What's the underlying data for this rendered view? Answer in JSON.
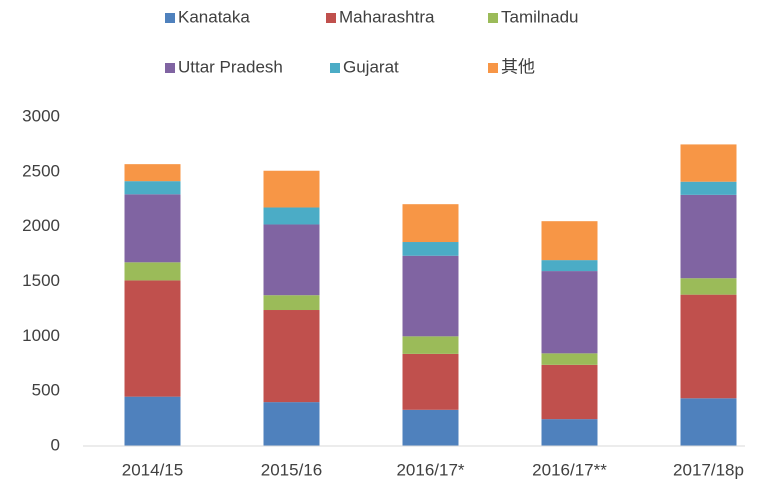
{
  "chart_data": {
    "type": "stacked_bar",
    "categories": [
      "2014/15",
      "2015/16",
      "2016/17*",
      "2016/17**",
      "2017/18p"
    ],
    "series": [
      {
        "name": "Kanataka",
        "color": "#4f81bd",
        "values": [
          450,
          400,
          330,
          245,
          435
        ]
      },
      {
        "name": "Maharashtra",
        "color": "#c0504d",
        "values": [
          1060,
          840,
          510,
          495,
          945
        ]
      },
      {
        "name": "Tamilnadu",
        "color": "#9bbb59",
        "values": [
          165,
          135,
          160,
          105,
          150
        ]
      },
      {
        "name": "Uttar Pradesh",
        "color": "#8064a2",
        "values": [
          620,
          645,
          735,
          750,
          760
        ]
      },
      {
        "name": "Gujarat",
        "color": "#4bacc6",
        "values": [
          120,
          155,
          125,
          100,
          120
        ]
      },
      {
        "name": "其他",
        "color": "#f79646",
        "values": [
          155,
          335,
          345,
          355,
          340
        ]
      }
    ],
    "ylim": [
      0,
      3000
    ],
    "yticks": [
      0,
      500,
      1000,
      1500,
      2000,
      2500,
      3000
    ],
    "grid": false,
    "legend": "top"
  }
}
